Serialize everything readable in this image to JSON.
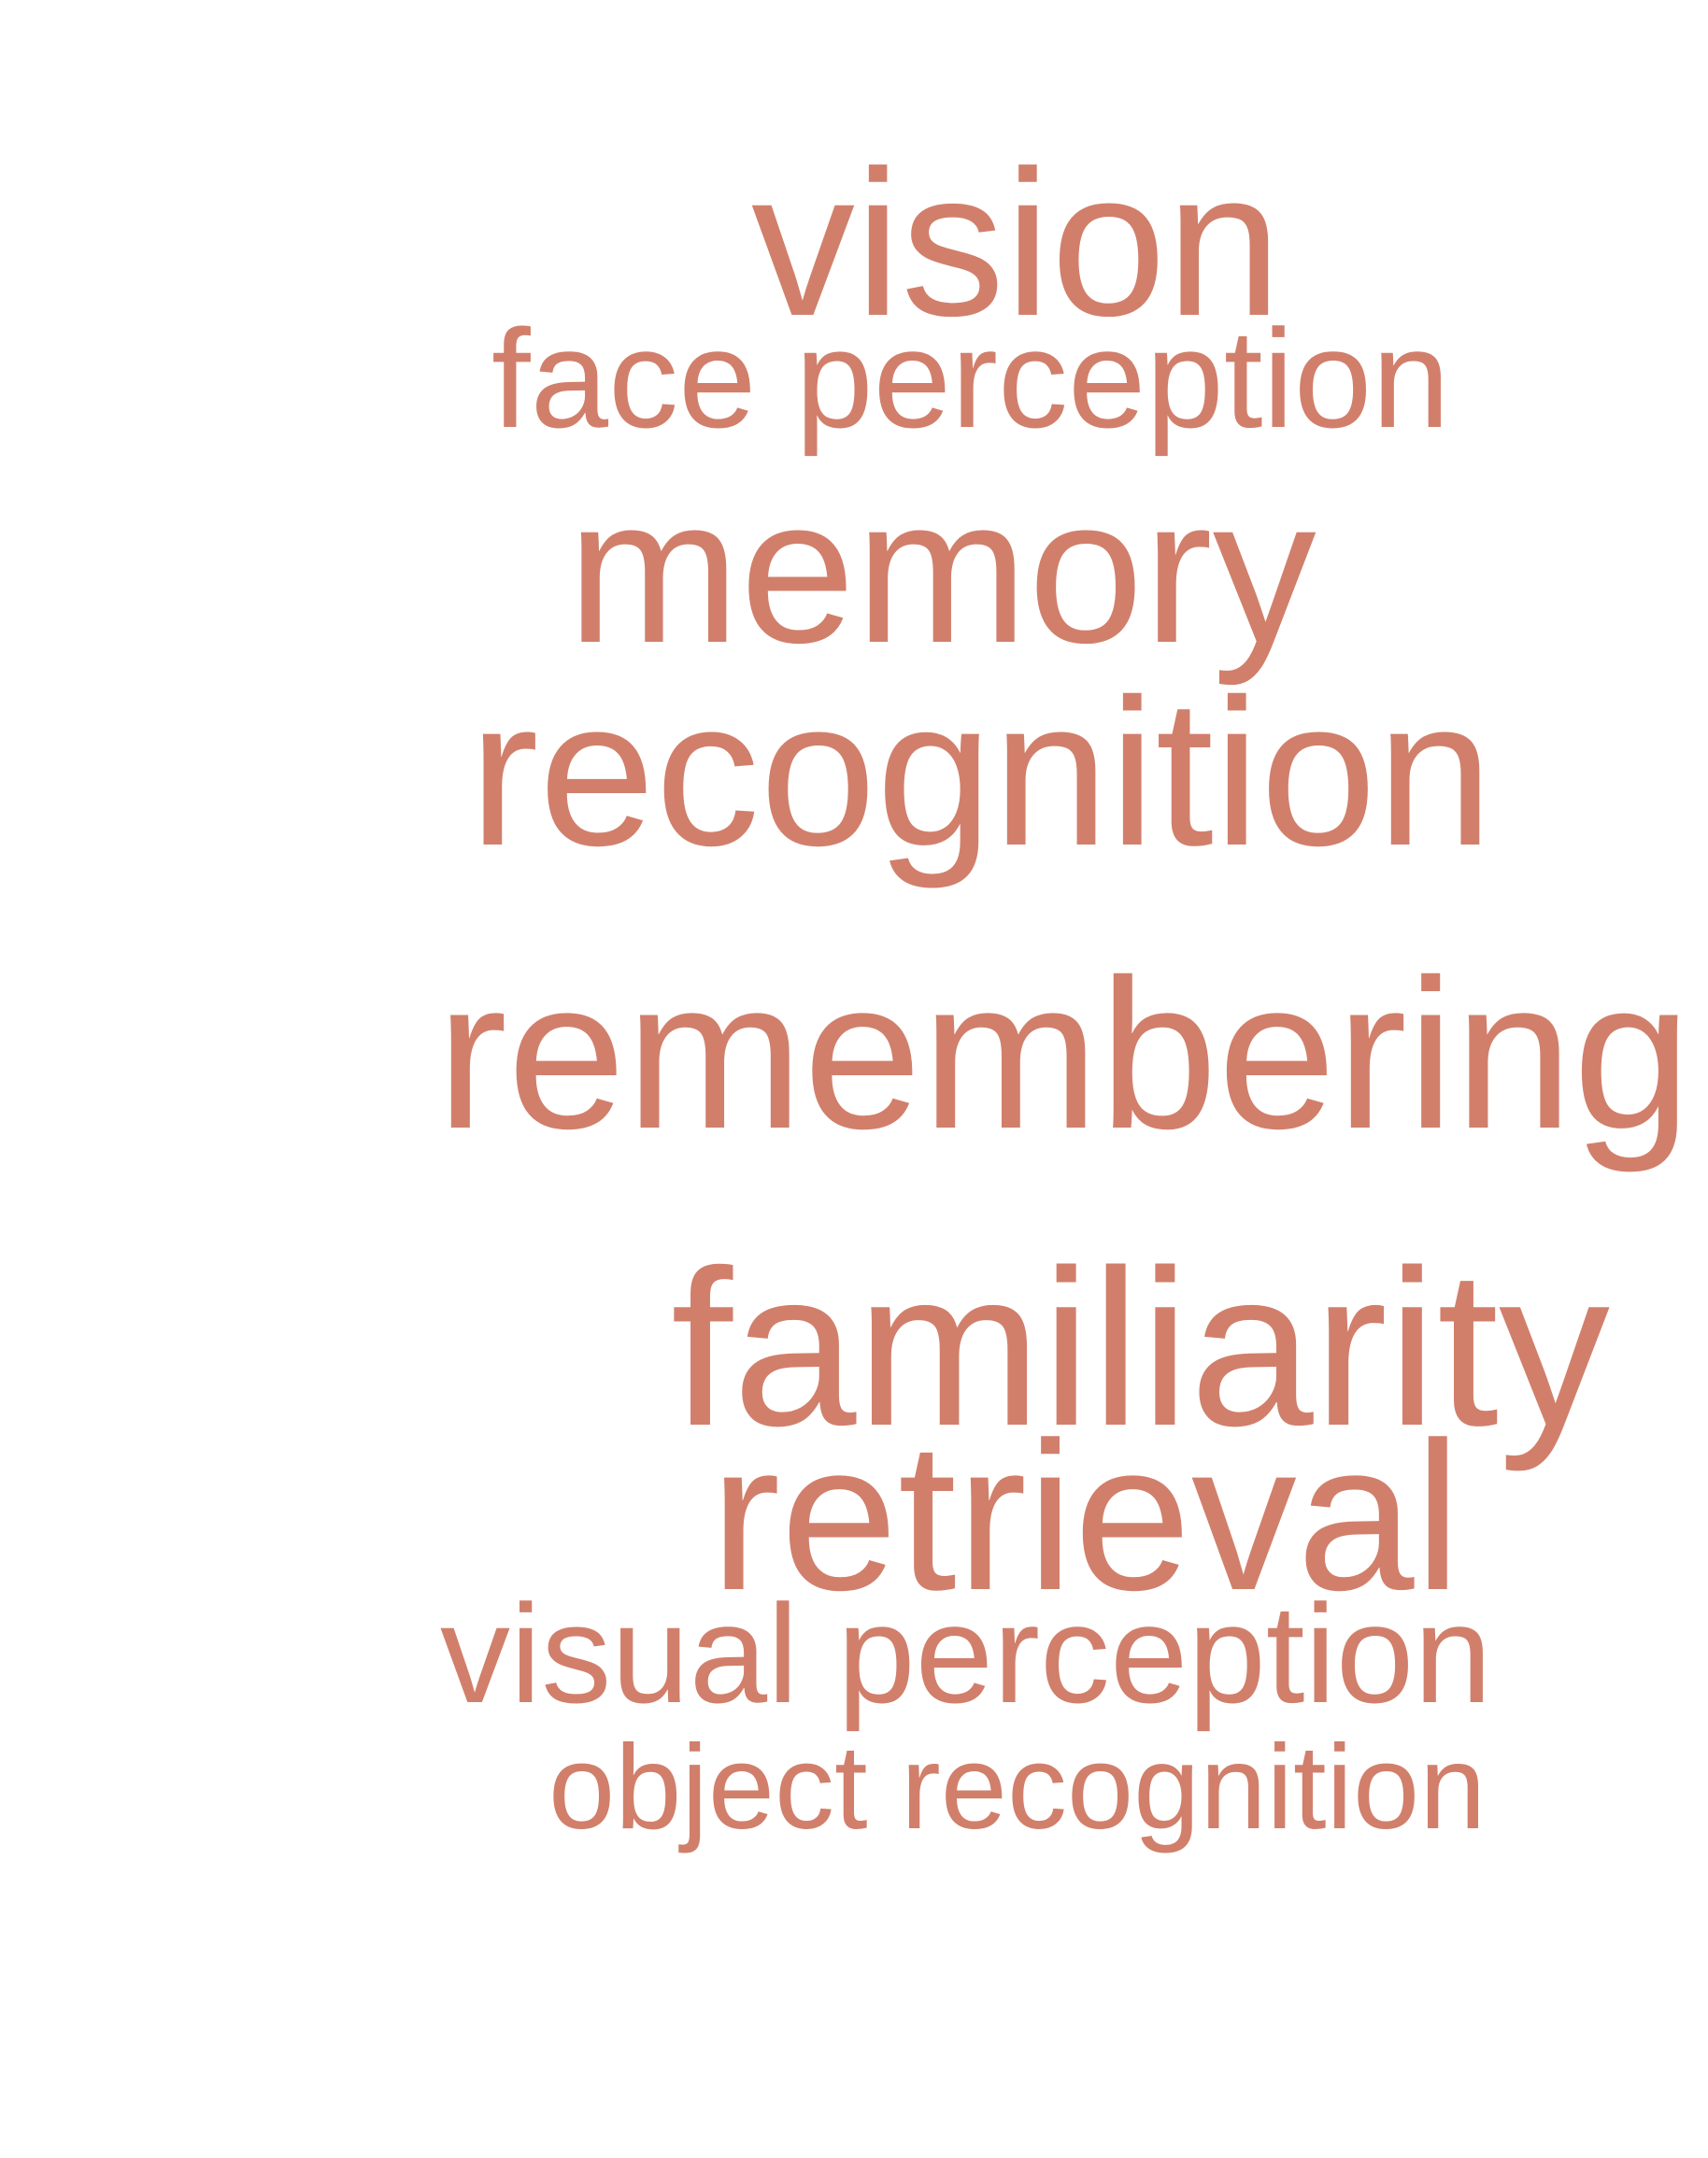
{
  "word_cloud": {
    "color": "#d17f6b",
    "words": [
      {
        "text": "vision"
      },
      {
        "text": "face perception"
      },
      {
        "text": "memory"
      },
      {
        "text": "recognition"
      },
      {
        "text": "remembering"
      },
      {
        "text": "familiarity"
      },
      {
        "text": "retrieval"
      },
      {
        "text": "visual perception"
      },
      {
        "text": "object recognition"
      }
    ]
  }
}
